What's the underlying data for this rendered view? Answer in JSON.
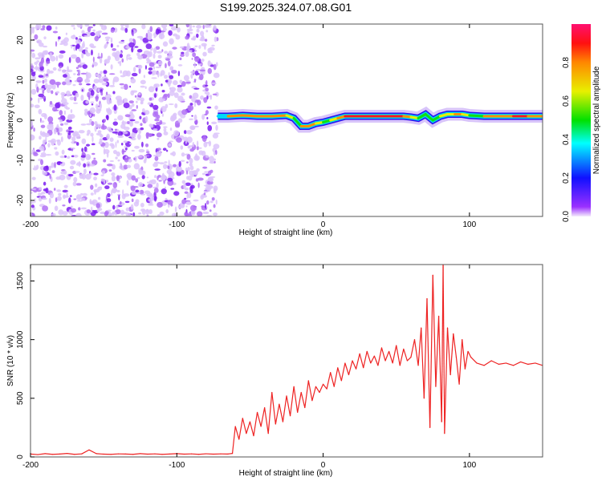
{
  "title": "S199.2025.324.07.08.G01",
  "chart_data": [
    {
      "type": "heatmap",
      "title": "S199.2025.324.07.08.G01",
      "xlabel": "Height of straight line (km)",
      "ylabel": "Frequency (Hz)",
      "xlim": [
        -200,
        150
      ],
      "ylim": [
        -24,
        24
      ],
      "xticks": [
        -200,
        -100,
        0,
        100
      ],
      "yticks": [
        -20,
        -10,
        0,
        10,
        20
      ],
      "colorbar": {
        "label": "Normalized spectral amplitude",
        "range": [
          0,
          1
        ],
        "ticks": [
          "0.0",
          "0.2",
          "0.4",
          "0.6",
          "0.8"
        ]
      },
      "noise_region_x": [
        -200,
        -72
      ],
      "ridge": {
        "x": [
          -72,
          -65,
          -55,
          -45,
          -35,
          -25,
          -20,
          -15,
          -10,
          -5,
          0,
          5,
          10,
          15,
          25,
          35,
          45,
          55,
          60,
          65,
          70,
          75,
          80,
          85,
          90,
          95,
          100,
          110,
          120,
          130,
          140,
          150
        ],
        "freq": [
          1,
          1,
          1.2,
          1,
          1,
          1.2,
          0.5,
          -1.5,
          -1.5,
          -0.8,
          -0.5,
          0,
          0.5,
          1,
          1,
          1,
          1,
          1,
          0.8,
          0.5,
          1.5,
          0,
          1,
          1.5,
          1.5,
          1.5,
          1.2,
          1,
          1,
          1,
          1,
          1
        ],
        "amplitude": [
          0.3,
          0.7,
          0.8,
          0.7,
          0.8,
          0.6,
          0.5,
          0.7,
          0.8,
          0.6,
          0.5,
          0.6,
          0.8,
          0.9,
          1,
          0.9,
          1,
          0.8,
          0.6,
          0.5,
          0.4,
          0.5,
          0.6,
          0.6,
          0.7,
          0.6,
          0.5,
          0.8,
          0.8,
          0.85,
          0.8,
          0.7
        ]
      }
    },
    {
      "type": "line",
      "xlabel": "Height of straight line (km)",
      "ylabel": "SNR (10 * v/v)",
      "xlim": [
        -200,
        150
      ],
      "ylim": [
        0,
        1640
      ],
      "xticks": [
        -200,
        -100,
        0,
        100
      ],
      "yticks": [
        0,
        500,
        1000,
        1500
      ],
      "color": "#ee2222",
      "x": [
        -200,
        -195,
        -190,
        -185,
        -180,
        -175,
        -170,
        -165,
        -160,
        -155,
        -150,
        -145,
        -140,
        -135,
        -130,
        -125,
        -120,
        -115,
        -110,
        -105,
        -100,
        -95,
        -90,
        -85,
        -80,
        -75,
        -70,
        -65,
        -62,
        -60,
        -57.5,
        -55,
        -52.5,
        -50,
        -47.5,
        -45,
        -42.5,
        -40,
        -37.5,
        -35,
        -32.5,
        -30,
        -27.5,
        -25,
        -22.5,
        -20,
        -17.5,
        -15,
        -12.5,
        -10,
        -7.5,
        -5,
        -2.5,
        0,
        2.5,
        5,
        7.5,
        10,
        12.5,
        15,
        17.5,
        20,
        22.5,
        25,
        27.5,
        30,
        32.5,
        35,
        37.5,
        40,
        42.5,
        45,
        47.5,
        50,
        52.5,
        55,
        57.5,
        60,
        62.5,
        65,
        67,
        69,
        71,
        73,
        75,
        77,
        79,
        81,
        82,
        83,
        85,
        87,
        89,
        91,
        93,
        95,
        97,
        99,
        101,
        105,
        110,
        115,
        120,
        125,
        130,
        135,
        140,
        145,
        150
      ],
      "y": [
        25,
        20,
        28,
        22,
        25,
        30,
        22,
        26,
        60,
        28,
        24,
        22,
        26,
        25,
        22,
        28,
        24,
        26,
        22,
        25,
        28,
        24,
        26,
        22,
        27,
        24,
        26,
        25,
        30,
        260,
        150,
        330,
        200,
        300,
        180,
        380,
        260,
        420,
        200,
        550,
        280,
        450,
        300,
        520,
        350,
        600,
        380,
        550,
        420,
        650,
        480,
        600,
        550,
        620,
        580,
        720,
        600,
        760,
        650,
        800,
        700,
        820,
        750,
        880,
        760,
        900,
        800,
        860,
        780,
        930,
        820,
        900,
        800,
        950,
        780,
        920,
        820,
        850,
        1000,
        780,
        1100,
        500,
        1350,
        250,
        1550,
        600,
        1200,
        300,
        1640,
        200,
        1100,
        700,
        1050,
        850,
        620,
        1000,
        750,
        900,
        850,
        800,
        780,
        820,
        790,
        800,
        780,
        810,
        790,
        800,
        780
      ]
    }
  ]
}
